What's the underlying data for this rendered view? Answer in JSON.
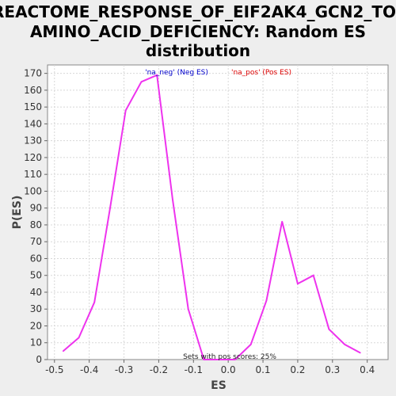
{
  "chart_data": {
    "type": "line",
    "title_lines": [
      "REACTOME_RESPONSE_OF_EIF2AK4_GCN2_TO_",
      "AMINO_ACID_DEFICIENCY: Random ES",
      "distribution"
    ],
    "xlabel": "ES",
    "ylabel": "P(ES)",
    "xlim": [
      -0.52,
      0.46
    ],
    "ylim": [
      0,
      175
    ],
    "x_ticks": [
      -0.5,
      -0.4,
      -0.3,
      -0.2,
      -0.1,
      0.0,
      0.1,
      0.2,
      0.3,
      0.4
    ],
    "x_tick_labels": [
      "-0.5",
      "-0.4",
      "-0.3",
      "-0.2",
      "-0.1",
      "0.0",
      "0.1",
      "0.2",
      "0.3",
      "0.4"
    ],
    "y_ticks": [
      0,
      10,
      20,
      30,
      40,
      50,
      60,
      70,
      80,
      90,
      100,
      110,
      120,
      130,
      140,
      150,
      160,
      170
    ],
    "grid": true,
    "legend": {
      "placement": "top-center",
      "items": [
        {
          "label": "'na_neg' (Neg ES)",
          "color": "#0000cc"
        },
        {
          "label": "'na_pos' (Pos ES)",
          "color": "#dd0000"
        }
      ]
    },
    "annotation": "Sets with pos scores: 25%",
    "series": [
      {
        "color": "#ee33ee",
        "x": [
          -0.475,
          -0.43,
          -0.385,
          -0.34,
          -0.295,
          -0.25,
          -0.205,
          -0.16,
          -0.115,
          -0.07,
          -0.025,
          0.02,
          0.065,
          0.11,
          0.155,
          0.2,
          0.245,
          0.29,
          0.335,
          0.38
        ],
        "y": [
          5,
          13,
          34,
          90,
          148,
          165,
          169,
          95,
          30,
          0,
          0,
          0,
          9,
          35,
          82,
          45,
          50,
          18,
          9,
          4
        ]
      }
    ]
  }
}
